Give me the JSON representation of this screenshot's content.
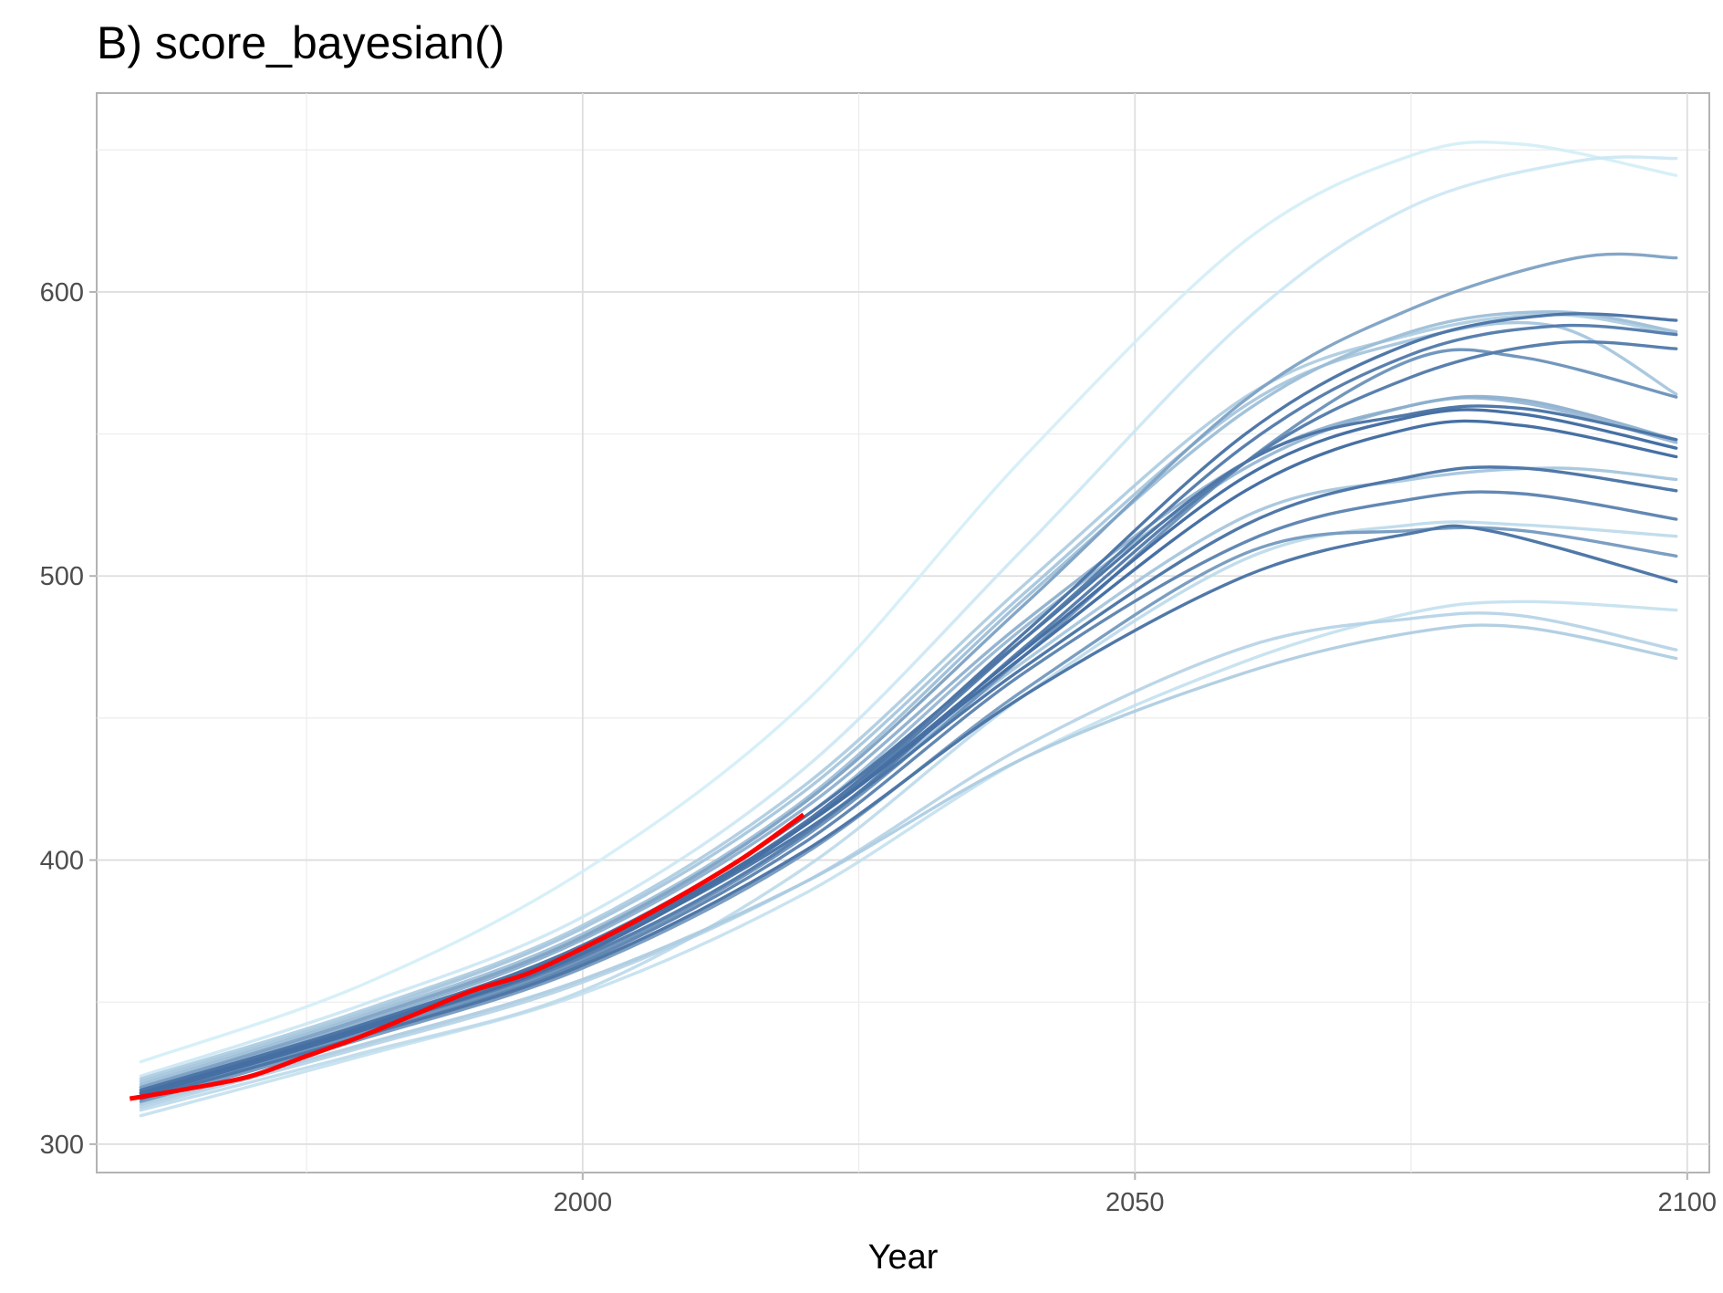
{
  "chart_data": {
    "type": "line",
    "title": "B) score_bayesian()",
    "xlabel": "Year",
    "ylabel": "",
    "xlim": [
      1956,
      2102
    ],
    "ylim": [
      290,
      670
    ],
    "x_ticks": [
      2000,
      2050,
      2100
    ],
    "y_ticks": [
      300,
      400,
      500,
      600
    ],
    "grid": true,
    "legend": "none",
    "observed": {
      "color": "#ff0000",
      "points": [
        [
          1959,
          316
        ],
        [
          1965,
          320
        ],
        [
          1970,
          324
        ],
        [
          1975,
          331
        ],
        [
          1980,
          338
        ],
        [
          1985,
          346
        ],
        [
          1990,
          354
        ],
        [
          1995,
          360
        ],
        [
          2000,
          369
        ],
        [
          2005,
          379
        ],
        [
          2010,
          390
        ],
        [
          2015,
          402
        ],
        [
          2020,
          416
        ]
      ]
    },
    "simulations": [
      {
        "shade": 0.95,
        "values": [
          [
            1960,
            318
          ],
          [
            1980,
            341
          ],
          [
            2000,
            369
          ],
          [
            2020,
            412
          ],
          [
            2040,
            472
          ],
          [
            2060,
            530
          ],
          [
            2075,
            552
          ],
          [
            2085,
            553
          ],
          [
            2099,
            542
          ]
        ]
      },
      {
        "shade": 0.95,
        "values": [
          [
            1960,
            317
          ],
          [
            1980,
            340
          ],
          [
            2000,
            367
          ],
          [
            2020,
            412
          ],
          [
            2040,
            474
          ],
          [
            2060,
            535
          ],
          [
            2075,
            556
          ],
          [
            2085,
            557
          ],
          [
            2099,
            545
          ]
        ]
      },
      {
        "shade": 0.9,
        "values": [
          [
            1960,
            319
          ],
          [
            1980,
            342
          ],
          [
            2000,
            370
          ],
          [
            2020,
            415
          ],
          [
            2040,
            478
          ],
          [
            2060,
            540
          ],
          [
            2075,
            557
          ],
          [
            2085,
            559
          ],
          [
            2099,
            548
          ]
        ]
      },
      {
        "shade": 0.9,
        "values": [
          [
            1960,
            318
          ],
          [
            1980,
            341
          ],
          [
            2000,
            368
          ],
          [
            2020,
            410
          ],
          [
            2040,
            468
          ],
          [
            2060,
            518
          ],
          [
            2075,
            535
          ],
          [
            2085,
            538
          ],
          [
            2099,
            530
          ]
        ]
      },
      {
        "shade": 0.9,
        "values": [
          [
            1960,
            319
          ],
          [
            1980,
            342
          ],
          [
            2000,
            369
          ],
          [
            2020,
            413
          ],
          [
            2040,
            480
          ],
          [
            2060,
            550
          ],
          [
            2075,
            582
          ],
          [
            2088,
            592
          ],
          [
            2099,
            590
          ]
        ]
      },
      {
        "shade": 0.85,
        "values": [
          [
            1960,
            318
          ],
          [
            1980,
            341
          ],
          [
            2000,
            368
          ],
          [
            2020,
            412
          ],
          [
            2040,
            478
          ],
          [
            2060,
            546
          ],
          [
            2075,
            578
          ],
          [
            2088,
            588
          ],
          [
            2099,
            585
          ]
        ]
      },
      {
        "shade": 0.85,
        "values": [
          [
            1960,
            317
          ],
          [
            1980,
            340
          ],
          [
            2000,
            366
          ],
          [
            2020,
            409
          ],
          [
            2040,
            475
          ],
          [
            2060,
            540
          ],
          [
            2075,
            570
          ],
          [
            2088,
            582
          ],
          [
            2099,
            580
          ]
        ]
      },
      {
        "shade": 0.9,
        "values": [
          [
            1960,
            316
          ],
          [
            1980,
            338
          ],
          [
            2000,
            363
          ],
          [
            2020,
            403
          ],
          [
            2040,
            458
          ],
          [
            2060,
            500
          ],
          [
            2075,
            515
          ],
          [
            2082,
            516
          ],
          [
            2099,
            498
          ]
        ]
      },
      {
        "shade": 0.8,
        "values": [
          [
            1960,
            316
          ],
          [
            1980,
            338
          ],
          [
            2000,
            364
          ],
          [
            2020,
            406
          ],
          [
            2040,
            466
          ],
          [
            2060,
            512
          ],
          [
            2075,
            527
          ],
          [
            2085,
            529
          ],
          [
            2099,
            520
          ]
        ]
      },
      {
        "shade": 0.7,
        "values": [
          [
            1960,
            317
          ],
          [
            1980,
            339
          ],
          [
            2000,
            365
          ],
          [
            2020,
            408
          ],
          [
            2040,
            472
          ],
          [
            2060,
            540
          ],
          [
            2075,
            576
          ],
          [
            2085,
            577
          ],
          [
            2099,
            563
          ]
        ]
      },
      {
        "shade": 0.65,
        "values": [
          [
            1960,
            315
          ],
          [
            1980,
            337
          ],
          [
            2000,
            362
          ],
          [
            2020,
            402
          ],
          [
            2040,
            460
          ],
          [
            2060,
            508
          ],
          [
            2075,
            516
          ],
          [
            2085,
            516
          ],
          [
            2099,
            507
          ]
        ]
      },
      {
        "shade": 0.6,
        "values": [
          [
            1960,
            320
          ],
          [
            1980,
            344
          ],
          [
            2000,
            373
          ],
          [
            2020,
            420
          ],
          [
            2040,
            490
          ],
          [
            2060,
            562
          ],
          [
            2075,
            594
          ],
          [
            2090,
            612
          ],
          [
            2099,
            612
          ]
        ]
      },
      {
        "shade": 0.5,
        "values": [
          [
            1960,
            320
          ],
          [
            1980,
            343
          ],
          [
            2000,
            372
          ],
          [
            2020,
            418
          ],
          [
            2040,
            484
          ],
          [
            2060,
            540
          ],
          [
            2075,
            560
          ],
          [
            2085,
            562
          ],
          [
            2099,
            548
          ]
        ]
      },
      {
        "shade": 0.45,
        "values": [
          [
            1960,
            319
          ],
          [
            1980,
            342
          ],
          [
            2000,
            370
          ],
          [
            2020,
            415
          ],
          [
            2040,
            482
          ],
          [
            2060,
            538
          ],
          [
            2075,
            560
          ],
          [
            2085,
            561
          ],
          [
            2099,
            547
          ]
        ]
      },
      {
        "shade": 0.4,
        "values": [
          [
            1960,
            321
          ],
          [
            1980,
            345
          ],
          [
            2000,
            374
          ],
          [
            2020,
            421
          ],
          [
            2040,
            492
          ],
          [
            2060,
            558
          ],
          [
            2075,
            586
          ],
          [
            2088,
            593
          ],
          [
            2099,
            586
          ]
        ]
      },
      {
        "shade": 0.35,
        "values": [
          [
            1960,
            322
          ],
          [
            1980,
            346
          ],
          [
            2000,
            376
          ],
          [
            2020,
            424
          ],
          [
            2040,
            494
          ],
          [
            2060,
            560
          ],
          [
            2075,
            583
          ],
          [
            2088,
            588
          ],
          [
            2099,
            564
          ]
        ]
      },
      {
        "shade": 0.35,
        "values": [
          [
            1960,
            318
          ],
          [
            1980,
            341
          ],
          [
            2000,
            368
          ],
          [
            2020,
            410
          ],
          [
            2040,
            470
          ],
          [
            2060,
            521
          ],
          [
            2075,
            534
          ],
          [
            2088,
            538
          ],
          [
            2099,
            534
          ]
        ]
      },
      {
        "shade": 0.3,
        "values": [
          [
            1960,
            314
          ],
          [
            1980,
            335
          ],
          [
            2000,
            358
          ],
          [
            2020,
            392
          ],
          [
            2040,
            436
          ],
          [
            2060,
            466
          ],
          [
            2075,
            480
          ],
          [
            2085,
            482
          ],
          [
            2099,
            471
          ]
        ]
      },
      {
        "shade": 0.3,
        "values": [
          [
            1960,
            323
          ],
          [
            1980,
            347
          ],
          [
            2000,
            377
          ],
          [
            2020,
            426
          ],
          [
            2040,
            497
          ],
          [
            2060,
            563
          ],
          [
            2075,
            585
          ],
          [
            2088,
            592
          ],
          [
            2099,
            585
          ]
        ]
      },
      {
        "shade": 0.25,
        "values": [
          [
            1960,
            313
          ],
          [
            1980,
            334
          ],
          [
            2000,
            357
          ],
          [
            2020,
            392
          ],
          [
            2040,
            440
          ],
          [
            2060,
            475
          ],
          [
            2075,
            485
          ],
          [
            2085,
            486
          ],
          [
            2099,
            474
          ]
        ]
      },
      {
        "shade": 0.2,
        "values": [
          [
            1960,
            312
          ],
          [
            1980,
            332
          ],
          [
            2000,
            354
          ],
          [
            2020,
            397
          ],
          [
            2040,
            458
          ],
          [
            2060,
            506
          ],
          [
            2075,
            518
          ],
          [
            2085,
            518
          ],
          [
            2099,
            514
          ]
        ]
      },
      {
        "shade": 0.15,
        "values": [
          [
            1960,
            310
          ],
          [
            1980,
            331
          ],
          [
            2000,
            353
          ],
          [
            2020,
            388
          ],
          [
            2040,
            436
          ],
          [
            2060,
            470
          ],
          [
            2075,
            487
          ],
          [
            2085,
            491
          ],
          [
            2099,
            488
          ]
        ]
      },
      {
        "shade": 0.1,
        "values": [
          [
            1960,
            324
          ],
          [
            1980,
            349
          ],
          [
            2000,
            380
          ],
          [
            2020,
            432
          ],
          [
            2040,
            510
          ],
          [
            2060,
            590
          ],
          [
            2075,
            630
          ],
          [
            2090,
            646
          ],
          [
            2099,
            647
          ]
        ]
      },
      {
        "shade": 0.05,
        "values": [
          [
            1960,
            329
          ],
          [
            1980,
            356
          ],
          [
            2000,
            396
          ],
          [
            2020,
            455
          ],
          [
            2040,
            542
          ],
          [
            2060,
            618
          ],
          [
            2075,
            648
          ],
          [
            2085,
            652
          ],
          [
            2099,
            641
          ]
        ]
      }
    ]
  }
}
